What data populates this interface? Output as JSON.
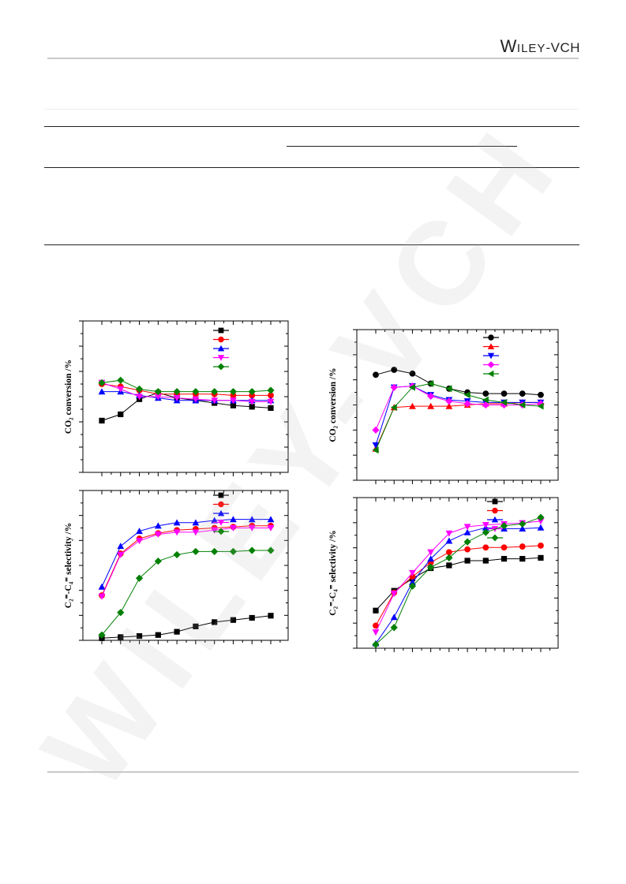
{
  "header": {
    "publisher_logo": "WILEY-VCH"
  },
  "chart_data": [
    {
      "type": "line",
      "panel": "top-left",
      "ylabel": "CO₂ conversion /%",
      "markers": [
        "square",
        "circle",
        "triangle-up",
        "triangle-down",
        "diamond"
      ],
      "colors": [
        "#000000",
        "#ff0000",
        "#0000ff",
        "#ff00ff",
        "#008000"
      ],
      "x": [
        1,
        2,
        3,
        4,
        5,
        6,
        7,
        8,
        9,
        10
      ],
      "series": [
        {
          "values": [
            40.5,
            43.0,
            49.0,
            51.5,
            49.5,
            48.5,
            47.5,
            46.5,
            46.0,
            45.5
          ]
        },
        {
          "values": [
            55.0,
            54.0,
            52.5,
            51.0,
            51.0,
            51.0,
            51.0,
            50.5,
            50.5,
            50.5
          ]
        },
        {
          "values": [
            52.0,
            52.0,
            50.5,
            49.5,
            48.5,
            48.5,
            48.5,
            48.5,
            48.5,
            48.5
          ]
        },
        {
          "values": [
            55.5,
            53.0,
            50.0,
            50.0,
            49.5,
            49.0,
            48.5,
            48.5,
            48.0,
            48.0
          ]
        },
        {
          "values": [
            55.5,
            56.5,
            53.0,
            52.0,
            52.0,
            52.0,
            52.0,
            52.0,
            52.0,
            52.5
          ]
        }
      ]
    },
    {
      "type": "line",
      "panel": "top-right",
      "ylabel": "CO₂ conversion /%",
      "markers": [
        "circle",
        "triangle-up",
        "triangle-down",
        "diamond",
        "triangle-left"
      ],
      "colors": [
        "#000000",
        "#ff0000",
        "#0000ff",
        "#ff00ff",
        "#008000"
      ],
      "x": [
        1,
        2,
        3,
        4,
        5,
        6,
        7,
        8,
        9,
        10
      ],
      "series": [
        {
          "values": [
            52.0,
            54.0,
            52.5,
            48.5,
            46.5,
            45.0,
            44.5,
            44.5,
            44.5,
            44.0
          ]
        },
        {
          "values": [
            22.5,
            39.0,
            39.5,
            39.5,
            39.5,
            40.0,
            40.5,
            40.5,
            41.0,
            41.0
          ]
        },
        {
          "values": [
            24.0,
            47.0,
            47.5,
            44.0,
            42.0,
            41.5,
            41.0,
            41.0,
            41.0,
            41.0
          ]
        },
        {
          "values": [
            30.0,
            47.0,
            47.5,
            43.5,
            41.5,
            40.5,
            40.0,
            40.0,
            40.0,
            40.5
          ]
        },
        {
          "values": [
            22.0,
            39.0,
            47.0,
            48.5,
            46.5,
            44.0,
            42.0,
            41.0,
            40.0,
            39.5
          ]
        }
      ]
    },
    {
      "type": "line",
      "panel": "bottom-left",
      "ylabel": "C₂⁼-C₄⁼ selectivity /%",
      "markers": [
        "square",
        "circle",
        "triangle-up",
        "triangle-down",
        "diamond"
      ],
      "colors": [
        "#000000",
        "#ff0000",
        "#0000ff",
        "#ff00ff",
        "#008000"
      ],
      "x": [
        1,
        2,
        3,
        4,
        5,
        6,
        7,
        8,
        9,
        10
      ],
      "series": [
        {
          "values": [
            1.0,
            1.5,
            2.0,
            2.5,
            4.0,
            6.5,
            8.5,
            9.5,
            10.5,
            11.5
          ]
        },
        {
          "values": [
            21.0,
            40.5,
            47.5,
            50.0,
            51.5,
            52.0,
            52.5,
            53.0,
            53.5,
            53.5
          ]
        },
        {
          "values": [
            25.0,
            44.0,
            51.0,
            53.5,
            55.0,
            55.0,
            56.0,
            56.5,
            56.5,
            56.5
          ]
        },
        {
          "values": [
            20.5,
            40.0,
            46.5,
            49.5,
            50.5,
            50.5,
            51.5,
            52.5,
            52.5,
            52.5
          ]
        },
        {
          "values": [
            2.5,
            13.0,
            29.0,
            37.0,
            40.0,
            41.5,
            41.5,
            41.5,
            42.0,
            42.0
          ]
        }
      ]
    },
    {
      "type": "line",
      "panel": "bottom-right",
      "ylabel": "C₂⁼-C₄⁼ selectivity /%",
      "markers": [
        "square",
        "circle",
        "triangle-up",
        "triangle-down",
        "diamond"
      ],
      "colors": [
        "#000000",
        "#ff0000",
        "#0000ff",
        "#ff00ff",
        "#008000"
      ],
      "x": [
        1,
        2,
        3,
        4,
        5,
        6,
        7,
        8,
        9,
        10
      ],
      "series": [
        {
          "values": [
            20.0,
            30.5,
            37.0,
            42.5,
            44.0,
            46.5,
            46.5,
            47.5,
            47.5,
            48.0
          ]
        },
        {
          "values": [
            12.0,
            29.5,
            38.0,
            45.5,
            51.0,
            52.5,
            53.5,
            53.5,
            54.0,
            54.5
          ]
        },
        {
          "values": [
            2.5,
            16.5,
            35.0,
            47.5,
            57.0,
            61.5,
            64.0,
            63.5,
            63.5,
            64.0
          ]
        },
        {
          "values": [
            8.5,
            29.0,
            40.0,
            51.0,
            61.0,
            64.5,
            65.5,
            66.0,
            66.5,
            67.5
          ]
        },
        {
          "values": [
            2.0,
            11.0,
            33.0,
            43.0,
            48.0,
            56.5,
            61.5,
            65.0,
            66.0,
            69.5
          ]
        }
      ]
    }
  ]
}
